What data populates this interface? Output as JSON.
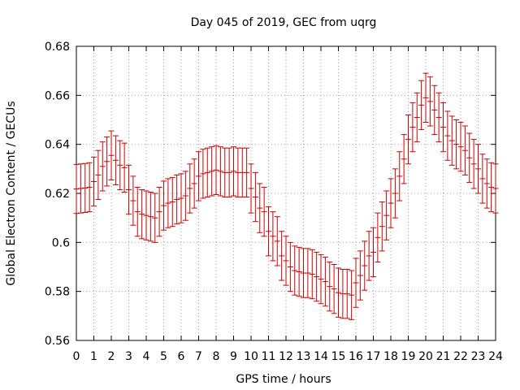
{
  "chart_data": {
    "type": "errorbar",
    "title": "Day 045 of 2019, GEC from uqrg",
    "xlabel": "GPS time / hours",
    "ylabel": "Global Electron Content / GECUs",
    "xlim": [
      0,
      24
    ],
    "ylim": [
      0.56,
      0.68
    ],
    "xticks": [
      0,
      1,
      2,
      3,
      4,
      5,
      6,
      7,
      8,
      9,
      10,
      11,
      12,
      13,
      14,
      15,
      16,
      17,
      18,
      19,
      20,
      21,
      22,
      23,
      24
    ],
    "yticks": [
      0.56,
      0.58,
      0.6,
      0.62,
      0.64,
      0.66,
      0.68
    ],
    "ytick_labels": [
      "0.56",
      "0.58",
      "0.6",
      "0.62",
      "0.64",
      "0.66",
      "0.68"
    ],
    "grid": true,
    "color": "#cc0000",
    "error": 0.01,
    "series": [
      {
        "name": "GEC",
        "x": [
          0,
          0.25,
          0.5,
          0.75,
          1,
          1.25,
          1.5,
          1.75,
          2,
          2.25,
          2.5,
          2.75,
          3,
          3.25,
          3.5,
          3.75,
          4,
          4.25,
          4.5,
          4.75,
          5,
          5.25,
          5.5,
          5.75,
          6,
          6.25,
          6.5,
          6.75,
          7,
          7.25,
          7.5,
          7.75,
          8,
          8.25,
          8.5,
          8.75,
          9,
          9.25,
          9.5,
          9.75,
          10,
          10.25,
          10.5,
          10.75,
          11,
          11.25,
          11.5,
          11.75,
          12,
          12.25,
          12.5,
          12.75,
          13,
          13.25,
          13.5,
          13.75,
          14,
          14.25,
          14.5,
          14.75,
          15,
          15.25,
          15.5,
          15.75,
          16,
          16.25,
          16.5,
          16.75,
          17,
          17.25,
          17.5,
          17.75,
          18,
          18.25,
          18.5,
          18.75,
          19,
          19.25,
          19.5,
          19.75,
          20,
          20.25,
          20.5,
          20.75,
          21,
          21.25,
          21.5,
          21.75,
          22,
          22.25,
          22.5,
          22.75,
          23,
          23.25,
          23.5,
          23.75,
          24
        ],
        "y": [
          0.6218,
          0.622,
          0.6222,
          0.6225,
          0.6248,
          0.6275,
          0.631,
          0.633,
          0.6355,
          0.6335,
          0.6315,
          0.6305,
          0.6215,
          0.617,
          0.6125,
          0.6115,
          0.611,
          0.6105,
          0.61,
          0.6125,
          0.615,
          0.616,
          0.6165,
          0.6175,
          0.618,
          0.619,
          0.622,
          0.624,
          0.627,
          0.628,
          0.6285,
          0.629,
          0.6295,
          0.629,
          0.6285,
          0.6285,
          0.629,
          0.6285,
          0.6285,
          0.6285,
          0.622,
          0.6185,
          0.614,
          0.6125,
          0.6045,
          0.6025,
          0.6005,
          0.5945,
          0.5925,
          0.59,
          0.5885,
          0.588,
          0.5875,
          0.5875,
          0.587,
          0.586,
          0.585,
          0.584,
          0.582,
          0.581,
          0.5795,
          0.579,
          0.579,
          0.5785,
          0.5835,
          0.5865,
          0.5905,
          0.5945,
          0.596,
          0.602,
          0.6065,
          0.611,
          0.616,
          0.62,
          0.627,
          0.634,
          0.642,
          0.647,
          0.651,
          0.656,
          0.659,
          0.6575,
          0.654,
          0.651,
          0.647,
          0.6435,
          0.6415,
          0.64,
          0.639,
          0.6375,
          0.6345,
          0.632,
          0.63,
          0.626,
          0.624,
          0.6225,
          0.622
        ]
      }
    ]
  }
}
